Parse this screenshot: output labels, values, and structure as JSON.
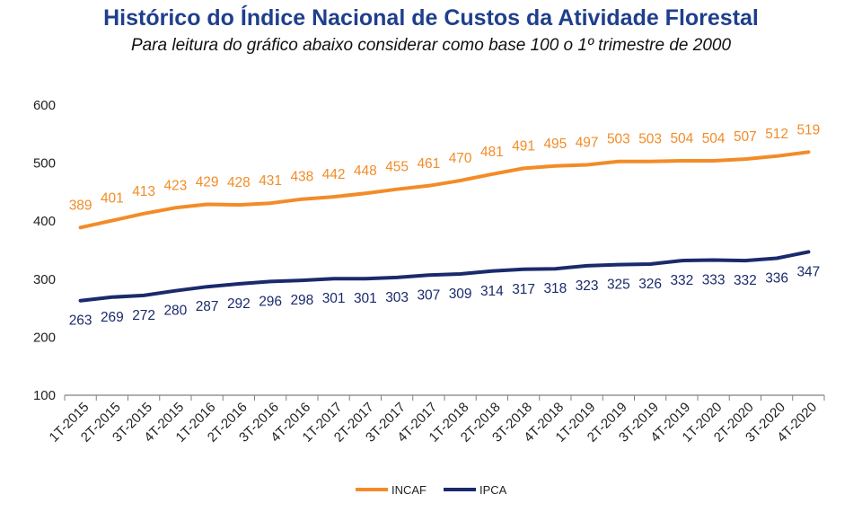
{
  "chart_data": {
    "type": "line",
    "title": "Histórico do Índice Nacional de Custos da Atividade Florestal",
    "subtitle": "Para leitura do gráfico abaixo considerar como base 100 o 1º trimestre de 2000",
    "categories": [
      "1T-2015",
      "2T-2015",
      "3T-2015",
      "4T-2015",
      "1T-2016",
      "2T-2016",
      "3T-2016",
      "4T-2016",
      "1T-2017",
      "2T-2017",
      "3T-2017",
      "4T-2017",
      "1T-2018",
      "2T-2018",
      "3T-2018",
      "4T-2018",
      "1T-2019",
      "2T-2019",
      "3T-2019",
      "4T-2019",
      "1T-2020",
      "2T-2020",
      "3T-2020",
      "4T-2020"
    ],
    "series": [
      {
        "name": "INCAF",
        "color": "#f28c28",
        "label_position": "above",
        "values": [
          389,
          401,
          413,
          423,
          429,
          428,
          431,
          438,
          442,
          448,
          455,
          461,
          470,
          481,
          491,
          495,
          497,
          503,
          503,
          504,
          504,
          507,
          512,
          519
        ]
      },
      {
        "name": "IPCA",
        "color": "#1a2a6c",
        "label_position": "below",
        "values": [
          263,
          269,
          272,
          280,
          287,
          292,
          296,
          298,
          301,
          301,
          303,
          307,
          309,
          314,
          317,
          318,
          323,
          325,
          326,
          332,
          333,
          332,
          336,
          347
        ]
      }
    ],
    "yticks": [
      100,
      200,
      300,
      400,
      500,
      600
    ],
    "ylim": [
      100,
      600
    ],
    "grid": false,
    "legend": "bottom-center"
  }
}
